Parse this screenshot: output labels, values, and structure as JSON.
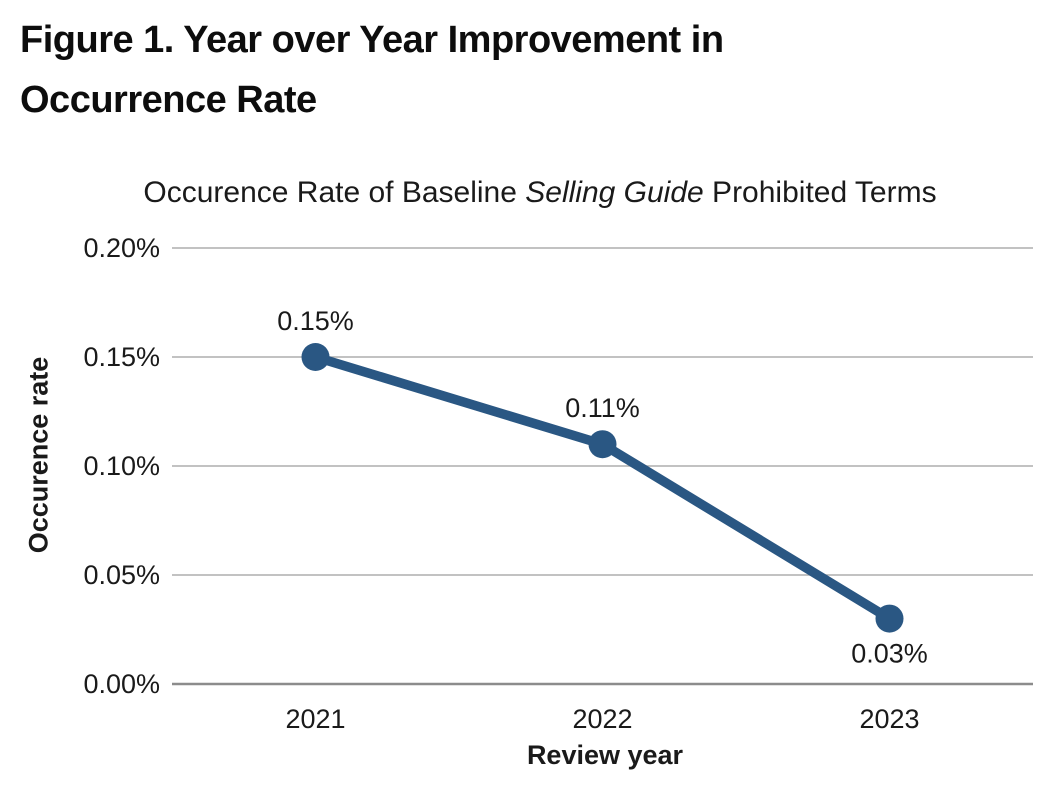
{
  "figure_title": {
    "line1": "Figure 1. Year over Year Improvement in",
    "line2": "Occurrence Rate"
  },
  "chart_data": {
    "type": "line",
    "title": {
      "prefix": "Occurence Rate of Baseline ",
      "italic": "Selling Guide",
      "suffix": " Prohibited Terms"
    },
    "xlabel": "Review year",
    "ylabel": "Occurence rate",
    "unit": "%",
    "categories": [
      "2021",
      "2022",
      "2023"
    ],
    "series": [
      {
        "name": "Occurence rate",
        "values": [
          0.15,
          0.11,
          0.03
        ]
      }
    ],
    "data_labels": [
      "0.15%",
      "0.11%",
      "0.03%"
    ],
    "data_label_positions": [
      "above",
      "above",
      "below"
    ],
    "yticks": [
      {
        "value": 0.2,
        "label": "0.20%"
      },
      {
        "value": 0.15,
        "label": "0.15%"
      },
      {
        "value": 0.1,
        "label": "0.10%"
      },
      {
        "value": 0.05,
        "label": "0.05%"
      },
      {
        "value": 0.0,
        "label": "0.00%"
      }
    ],
    "ylim": [
      0.0,
      0.2
    ],
    "grid": true,
    "legend": "none",
    "colors": {
      "line": "#2a5783",
      "gridline": "#adadad",
      "axis": "#8c8c8c",
      "text": "#1a1a1a"
    }
  }
}
